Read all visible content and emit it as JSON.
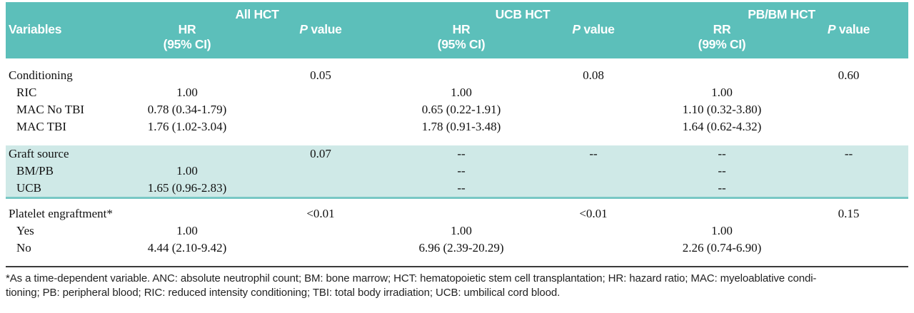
{
  "colors": {
    "header_teal": "#5cbfba",
    "highlight_band": "#cfe9e7",
    "band_border": "#79c8c5",
    "dark_rule": "#3b3b3b",
    "header_text": "#ffffff"
  },
  "header": {
    "variables_label": "Variables",
    "p_label_italic": "P",
    "p_label_rest": "value",
    "groups": [
      {
        "title": "All HCT",
        "stat": "HR",
        "ci": "(95% CI)"
      },
      {
        "title": "UCB HCT",
        "stat": "HR",
        "ci": "(95% CI)"
      },
      {
        "title": "PB/BM HCT",
        "stat": "RR",
        "ci": "(99% CI)"
      }
    ]
  },
  "table": {
    "sections": [
      {
        "style": "plain",
        "rows": [
          {
            "label": "Conditioning",
            "indent": false,
            "cells": [
              "",
              "0.05",
              "",
              "0.08",
              "",
              "0.60"
            ]
          },
          {
            "label": "RIC",
            "indent": true,
            "cells": [
              "1.00",
              "",
              "1.00",
              "",
              "1.00",
              ""
            ]
          },
          {
            "label": "MAC No TBI",
            "indent": true,
            "cells": [
              "0.78 (0.34-1.79)",
              "",
              "0.65 (0.22-1.91)",
              "",
              "1.10 (0.32-3.80)",
              ""
            ]
          },
          {
            "label": "MAC TBI",
            "indent": true,
            "cells": [
              "1.76 (1.02-3.04)",
              "",
              "1.78 (0.91-3.48)",
              "",
              "1.64 (0.62-4.32)",
              ""
            ]
          }
        ]
      },
      {
        "style": "highlight",
        "rows": [
          {
            "label": "Graft source",
            "indent": false,
            "cells": [
              "",
              "0.07",
              "--",
              "--",
              "--",
              "--"
            ]
          },
          {
            "label": "BM/PB",
            "indent": true,
            "cells": [
              "1.00",
              "",
              "--",
              "",
              "--",
              ""
            ]
          },
          {
            "label": "UCB",
            "indent": true,
            "cells": [
              "1.65 (0.96-2.83)",
              "",
              "--",
              "",
              "--",
              ""
            ]
          }
        ]
      },
      {
        "style": "plain",
        "rows": [
          {
            "label": "Platelet engraftment*",
            "indent": false,
            "cells": [
              "",
              "<0.01",
              "",
              "<0.01",
              "",
              "0.15"
            ]
          },
          {
            "label": "Yes",
            "indent": true,
            "cells": [
              "1.00",
              "",
              "1.00",
              "",
              "1.00",
              ""
            ]
          },
          {
            "label": "No",
            "indent": true,
            "cells": [
              "4.44 (2.10-9.42)",
              "",
              "6.96 (2.39-20.29)",
              "",
              "2.26 (0.74-6.90)",
              ""
            ]
          }
        ]
      }
    ]
  },
  "footnote": {
    "line1": "*As a time-dependent variable. ANC: absolute neutrophil count; BM: bone marrow; HCT: hematopoietic stem cell transplantation; HR: hazard ratio; MAC: myeloablative condi-",
    "line2": "tioning; PB: peripheral blood; RIC: reduced intensity conditioning; TBI: total body irradiation; UCB: umbilical cord blood."
  }
}
